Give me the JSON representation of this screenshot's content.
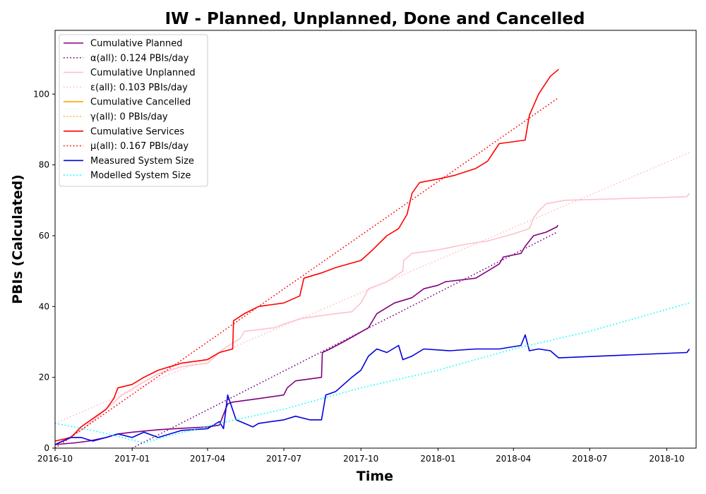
{
  "chart_data": {
    "type": "line",
    "title": "IW - Planned, Unplanned, Done  and Cancelled",
    "xlabel": "Time",
    "ylabel": "PBIs (Calculated)",
    "xlim": [
      "2016-10-01",
      "2018-11-05"
    ],
    "ylim": [
      0,
      118
    ],
    "x_ticks": [
      "2016-10",
      "2017-01",
      "2017-04",
      "2017-07",
      "2017-10",
      "2018-01",
      "2018-04",
      "2018-07",
      "2018-10"
    ],
    "y_ticks": [
      0,
      20,
      40,
      60,
      80,
      100
    ],
    "grid": false,
    "legend_position": "top-left",
    "series": [
      {
        "name": "Cumulative Planned",
        "style": "solid",
        "color": "#800080",
        "points": [
          [
            "2016-10-01",
            1
          ],
          [
            "2016-10-25",
            1.5
          ],
          [
            "2016-11-10",
            2
          ],
          [
            "2016-12-01",
            3
          ],
          [
            "2016-12-15",
            4
          ],
          [
            "2017-01-01",
            4.5
          ],
          [
            "2017-02-01",
            5.2
          ],
          [
            "2017-03-01",
            5.6
          ],
          [
            "2017-04-01",
            6
          ],
          [
            "2017-04-15",
            6.5
          ],
          [
            "2017-04-25",
            12.5
          ],
          [
            "2017-05-01",
            13
          ],
          [
            "2017-06-01",
            14
          ],
          [
            "2017-07-01",
            15
          ],
          [
            "2017-07-05",
            17
          ],
          [
            "2017-07-15",
            19
          ],
          [
            "2017-08-15",
            20
          ],
          [
            "2017-08-16",
            27
          ],
          [
            "2017-08-25",
            28
          ],
          [
            "2017-09-10",
            30
          ],
          [
            "2017-09-25",
            32
          ],
          [
            "2017-10-10",
            34
          ],
          [
            "2017-10-20",
            38
          ],
          [
            "2017-11-10",
            41
          ],
          [
            "2017-12-01",
            42.5
          ],
          [
            "2017-12-15",
            45
          ],
          [
            "2018-01-01",
            46
          ],
          [
            "2018-01-10",
            47
          ],
          [
            "2018-02-15",
            48
          ],
          [
            "2018-03-01",
            50
          ],
          [
            "2018-03-15",
            52
          ],
          [
            "2018-03-20",
            54
          ],
          [
            "2018-04-10",
            55
          ],
          [
            "2018-04-15",
            57
          ],
          [
            "2018-04-25",
            60
          ],
          [
            "2018-05-10",
            61
          ],
          [
            "2018-05-23",
            62.5
          ],
          [
            "2018-05-24",
            63
          ]
        ]
      },
      {
        "name": "α(all): 0.124 PBIs/day",
        "style": "dotted",
        "color": "#800080",
        "points": [
          [
            "2017-01-01",
            0
          ],
          [
            "2018-05-23",
            61
          ]
        ]
      },
      {
        "name": "Cumulative Unplanned",
        "style": "solid",
        "color": "#ffc0cb",
        "points": [
          [
            "2016-10-01",
            1
          ],
          [
            "2016-11-01",
            5
          ],
          [
            "2016-12-01",
            11
          ],
          [
            "2016-12-20",
            15
          ],
          [
            "2017-01-10",
            18
          ],
          [
            "2017-02-01",
            21
          ],
          [
            "2017-03-01",
            23
          ],
          [
            "2017-04-01",
            24
          ],
          [
            "2017-04-20",
            28
          ],
          [
            "2017-05-10",
            31
          ],
          [
            "2017-05-15",
            33
          ],
          [
            "2017-06-20",
            34
          ],
          [
            "2017-07-01",
            35
          ],
          [
            "2017-07-20",
            36.5
          ],
          [
            "2017-08-01",
            37
          ],
          [
            "2017-09-01",
            38
          ],
          [
            "2017-09-20",
            38.5
          ],
          [
            "2017-10-01",
            41
          ],
          [
            "2017-10-10",
            45
          ],
          [
            "2017-11-01",
            47
          ],
          [
            "2017-11-20",
            50
          ],
          [
            "2017-11-21",
            53
          ],
          [
            "2017-12-01",
            55
          ],
          [
            "2018-01-01",
            56
          ],
          [
            "2018-02-01",
            57.5
          ],
          [
            "2018-03-01",
            58.5
          ],
          [
            "2018-04-01",
            60.5
          ],
          [
            "2018-04-20",
            62
          ],
          [
            "2018-04-25",
            65
          ],
          [
            "2018-05-01",
            67
          ],
          [
            "2018-05-10",
            69
          ],
          [
            "2018-06-01",
            70
          ],
          [
            "2018-10-25",
            71
          ],
          [
            "2018-10-28",
            72
          ]
        ]
      },
      {
        "name": "ε(all): 0.103 PBIs/day",
        "style": "dotted",
        "color": "#ffc0cb",
        "points": [
          [
            "2016-10-01",
            7
          ],
          [
            "2018-10-28",
            83.5
          ]
        ]
      },
      {
        "name": "Cumulative Cancelled",
        "style": "solid",
        "color": "#ffa500",
        "points": []
      },
      {
        "name": "γ(all): 0 PBIs/day",
        "style": "dotted",
        "color": "#ffa500",
        "points": []
      },
      {
        "name": "Cumulative Services",
        "style": "solid",
        "color": "#ff0000",
        "points": [
          [
            "2016-10-01",
            2
          ],
          [
            "2016-10-20",
            3
          ],
          [
            "2016-11-01",
            6
          ],
          [
            "2016-12-01",
            11
          ],
          [
            "2016-12-10",
            14
          ],
          [
            "2016-12-15",
            17
          ],
          [
            "2017-01-01",
            18
          ],
          [
            "2017-01-15",
            20
          ],
          [
            "2017-02-01",
            22
          ],
          [
            "2017-03-01",
            24
          ],
          [
            "2017-04-01",
            25
          ],
          [
            "2017-04-15",
            27
          ],
          [
            "2017-05-01",
            28
          ],
          [
            "2017-05-02",
            36
          ],
          [
            "2017-05-15",
            38
          ],
          [
            "2017-06-01",
            40
          ],
          [
            "2017-07-01",
            41
          ],
          [
            "2017-07-20",
            43
          ],
          [
            "2017-07-25",
            48
          ],
          [
            "2017-08-15",
            49.5
          ],
          [
            "2017-09-01",
            51
          ],
          [
            "2017-10-01",
            53
          ],
          [
            "2017-10-15",
            56
          ],
          [
            "2017-11-01",
            60
          ],
          [
            "2017-11-15",
            62
          ],
          [
            "2017-11-25",
            66
          ],
          [
            "2017-12-01",
            72
          ],
          [
            "2017-12-10",
            75
          ],
          [
            "2018-01-01",
            76
          ],
          [
            "2018-01-20",
            77
          ],
          [
            "2018-02-15",
            79
          ],
          [
            "2018-03-01",
            81
          ],
          [
            "2018-03-15",
            86
          ],
          [
            "2018-04-15",
            87
          ],
          [
            "2018-04-20",
            94
          ],
          [
            "2018-05-01",
            100
          ],
          [
            "2018-05-15",
            105
          ],
          [
            "2018-05-25",
            107
          ]
        ]
      },
      {
        "name": "μ(all): 0.167 PBIs/day",
        "style": "dotted",
        "color": "#ff0000",
        "points": [
          [
            "2016-10-01",
            0
          ],
          [
            "2018-05-25",
            99
          ]
        ]
      },
      {
        "name": "Measured System Size",
        "style": "solid",
        "color": "#0000e0",
        "points": [
          [
            "2016-10-01",
            1
          ],
          [
            "2016-10-20",
            3
          ],
          [
            "2016-11-01",
            3
          ],
          [
            "2016-11-15",
            2
          ],
          [
            "2016-12-01",
            3
          ],
          [
            "2016-12-15",
            4
          ],
          [
            "2017-01-01",
            3
          ],
          [
            "2017-01-15",
            4.5
          ],
          [
            "2017-02-01",
            3
          ],
          [
            "2017-03-01",
            5
          ],
          [
            "2017-04-01",
            5.5
          ],
          [
            "2017-04-15",
            7.5
          ],
          [
            "2017-04-20",
            5.5
          ],
          [
            "2017-04-25",
            15
          ],
          [
            "2017-05-05",
            8
          ],
          [
            "2017-05-25",
            6
          ],
          [
            "2017-06-01",
            7
          ],
          [
            "2017-07-01",
            8
          ],
          [
            "2017-07-15",
            9
          ],
          [
            "2017-08-01",
            8
          ],
          [
            "2017-08-15",
            8
          ],
          [
            "2017-08-20",
            15
          ],
          [
            "2017-09-01",
            16
          ],
          [
            "2017-09-20",
            20
          ],
          [
            "2017-10-01",
            22
          ],
          [
            "2017-10-10",
            26
          ],
          [
            "2017-10-20",
            28
          ],
          [
            "2017-11-01",
            27
          ],
          [
            "2017-11-15",
            29
          ],
          [
            "2017-11-20",
            25
          ],
          [
            "2017-12-01",
            26
          ],
          [
            "2017-12-15",
            28
          ],
          [
            "2018-01-15",
            27.5
          ],
          [
            "2018-02-15",
            28
          ],
          [
            "2018-03-15",
            28
          ],
          [
            "2018-04-10",
            29
          ],
          [
            "2018-04-15",
            32
          ],
          [
            "2018-04-20",
            27.5
          ],
          [
            "2018-05-01",
            28
          ],
          [
            "2018-05-15",
            27.5
          ],
          [
            "2018-05-25",
            25.5
          ],
          [
            "2018-10-25",
            27
          ],
          [
            "2018-10-28",
            28
          ]
        ]
      },
      {
        "name": "Modelled System Size",
        "style": "dotted",
        "color": "#00ffff",
        "points": [
          [
            "2016-10-01",
            7
          ],
          [
            "2016-11-15",
            5
          ],
          [
            "2016-12-20",
            3
          ],
          [
            "2017-01-15",
            1.5
          ],
          [
            "2017-02-15",
            3.5
          ],
          [
            "2017-04-15",
            7
          ],
          [
            "2017-07-01",
            11
          ],
          [
            "2017-10-01",
            17
          ],
          [
            "2018-01-01",
            22
          ],
          [
            "2018-04-01",
            28
          ],
          [
            "2018-07-01",
            33
          ],
          [
            "2018-10-28",
            41
          ]
        ]
      }
    ]
  }
}
